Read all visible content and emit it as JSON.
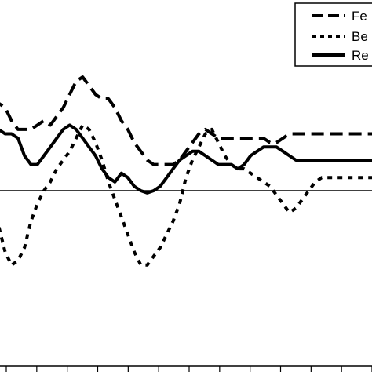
{
  "chart_data": {
    "type": "line",
    "title": "",
    "xlabel": "",
    "ylabel": "",
    "ylim": [
      -4,
      4
    ],
    "x_count": 61,
    "x_ticks": 13,
    "reference_line": 0,
    "legend_position": "top-right",
    "series": [
      {
        "name": "Fe",
        "style": "long-dash",
        "values": [
          1.9,
          2.0,
          1.9,
          1.6,
          1.4,
          1.4,
          1.4,
          1.5,
          1.6,
          1.5,
          1.7,
          1.9,
          2.2,
          2.5,
          2.6,
          2.4,
          2.2,
          2.1,
          2.1,
          1.9,
          1.6,
          1.4,
          1.1,
          0.9,
          0.7,
          0.6,
          0.6,
          0.6,
          0.6,
          0.7,
          0.9,
          1.1,
          1.3,
          1.4,
          1.3,
          1.2,
          1.2,
          1.2,
          1.2,
          1.2,
          1.2,
          1.2,
          1.2,
          1.1,
          1.1,
          1.2,
          1.3,
          1.3,
          1.3,
          1.3,
          1.3,
          1.3,
          1.3,
          1.3,
          1.3,
          1.3,
          1.3,
          1.3,
          1.3,
          1.3,
          1.3
        ]
      },
      {
        "name": "Be",
        "style": "short-dash",
        "values": [
          -0.4,
          -0.8,
          -1.4,
          -1.7,
          -1.6,
          -1.3,
          -0.7,
          -0.3,
          0.0,
          0.2,
          0.5,
          0.7,
          0.9,
          1.2,
          1.5,
          1.4,
          1.1,
          0.7,
          0.2,
          -0.2,
          -0.6,
          -1.0,
          -1.4,
          -1.7,
          -1.7,
          -1.5,
          -1.3,
          -1.0,
          -0.7,
          -0.3,
          0.3,
          0.7,
          1.0,
          1.3,
          1.4,
          1.1,
          0.8,
          0.6,
          0.5,
          0.5,
          0.4,
          0.3,
          0.2,
          0.1,
          -0.1,
          -0.3,
          -0.5,
          -0.4,
          -0.2,
          0.0,
          0.2,
          0.3,
          0.3,
          0.3,
          0.3,
          0.3,
          0.3,
          0.3,
          0.3,
          0.3,
          0.3
        ]
      },
      {
        "name": "Re",
        "style": "solid",
        "values": [
          1.4,
          1.4,
          1.3,
          1.3,
          1.2,
          0.8,
          0.6,
          0.6,
          0.8,
          1.0,
          1.2,
          1.4,
          1.5,
          1.4,
          1.2,
          1.0,
          0.8,
          0.5,
          0.3,
          0.2,
          0.4,
          0.3,
          0.1,
          0.0,
          -0.05,
          0.0,
          0.1,
          0.3,
          0.5,
          0.7,
          0.8,
          0.9,
          0.9,
          0.8,
          0.7,
          0.6,
          0.6,
          0.6,
          0.5,
          0.6,
          0.8,
          0.9,
          1.0,
          1.0,
          1.0,
          0.9,
          0.8,
          0.7,
          0.7,
          0.7,
          0.7,
          0.7,
          0.7,
          0.7,
          0.7,
          0.7,
          0.7,
          0.7,
          0.7,
          0.7,
          0.7
        ]
      }
    ]
  }
}
